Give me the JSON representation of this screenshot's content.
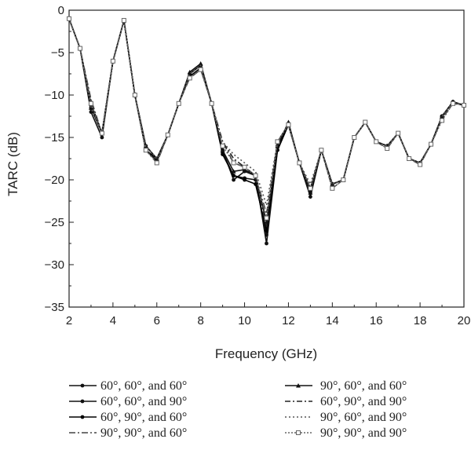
{
  "chart_data": {
    "type": "line",
    "xlabel": "Frequency (GHz)",
    "ylabel": "TARC (dB)",
    "xlim": [
      2,
      20
    ],
    "ylim": [
      -35,
      0
    ],
    "xticks": [
      2,
      4,
      6,
      8,
      10,
      12,
      14,
      16,
      18,
      20
    ],
    "yticks": [
      0,
      -5,
      -10,
      -15,
      -20,
      -25,
      -30,
      -35
    ],
    "grid": false,
    "legend_position": "bottom",
    "x": [
      2,
      2.5,
      3,
      3.5,
      4,
      4.5,
      5,
      5.5,
      6,
      6.5,
      7,
      7.5,
      8,
      8.5,
      9,
      9.5,
      10,
      10.5,
      11,
      11.5,
      12,
      12.5,
      13,
      13.5,
      14,
      14.5,
      15,
      15.5,
      16,
      16.5,
      17,
      17.5,
      18,
      18.5,
      19,
      19.5,
      20
    ],
    "series": [
      {
        "name": "60°, 60°, and 60°",
        "values": [
          -1,
          -4.5,
          -12,
          -15,
          -6,
          -1.2,
          -10,
          -16,
          -17.5,
          -14.7,
          -11,
          -7.5,
          -6.5,
          -11,
          -16.5,
          -20,
          -19,
          -19.5,
          -27.5,
          -16.5,
          -13.5,
          -18,
          -22,
          -16.5,
          -20.5,
          -20,
          -15,
          -13.2,
          -15.5,
          -16,
          -14.5,
          -17.5,
          -18,
          -15.8,
          -12.5,
          -10.8,
          -11.2
        ]
      },
      {
        "name": "60°, 60°, and 90°",
        "values": [
          -1,
          -4.5,
          -11.5,
          -14.5,
          -6,
          -1.2,
          -10,
          -16.5,
          -17.8,
          -14.7,
          -11,
          -7.5,
          -6.5,
          -11,
          -16.8,
          -19.5,
          -19.8,
          -20,
          -26.5,
          -16,
          -13.5,
          -18,
          -21.5,
          -16.5,
          -20.5,
          -20,
          -15,
          -13.2,
          -15.5,
          -16,
          -14.5,
          -17.5,
          -18,
          -15.8,
          -12.5,
          -10.8,
          -11.2
        ]
      },
      {
        "name": "60°, 90°, and 60°",
        "values": [
          -1,
          -4.5,
          -11,
          -14.5,
          -6,
          -1.2,
          -10,
          -16.5,
          -17.5,
          -14.7,
          -11,
          -7.8,
          -6.8,
          -11,
          -17,
          -19.5,
          -20,
          -20.5,
          -26,
          -16.5,
          -13.5,
          -18,
          -21,
          -16.5,
          -20.5,
          -20,
          -15,
          -13.2,
          -15.5,
          -16,
          -14.5,
          -17.5,
          -18,
          -15.8,
          -12.5,
          -10.8,
          -11.2
        ]
      },
      {
        "name": "90°, 90°, and 60°",
        "values": [
          -1,
          -4.5,
          -10.5,
          -14.5,
          -6,
          -1.2,
          -10,
          -16.5,
          -18,
          -14.7,
          -11,
          -8,
          -7,
          -11,
          -15.5,
          -18,
          -18.5,
          -19.5,
          -24,
          -15.5,
          -13.5,
          -18,
          -21,
          -16.5,
          -21,
          -20,
          -15,
          -13.2,
          -15.5,
          -16.3,
          -14.5,
          -17.5,
          -18.2,
          -15.8,
          -12.8,
          -11,
          -11.2
        ]
      },
      {
        "name": "90°, 60°, and 60°",
        "values": [
          -1,
          -4.5,
          -11.5,
          -14.5,
          -6,
          -1.2,
          -10,
          -16,
          -17.5,
          -14.7,
          -11,
          -7.3,
          -6.3,
          -11,
          -16.5,
          -19,
          -18.8,
          -19.5,
          -25,
          -16,
          -13.2,
          -18,
          -21.5,
          -16.5,
          -20.5,
          -20,
          -15,
          -13.2,
          -15.5,
          -16,
          -14.5,
          -17.5,
          -18,
          -15.8,
          -12.5,
          -10.8,
          -11.2
        ]
      },
      {
        "name": "60°, 90°, and 90°",
        "values": [
          -1,
          -4.5,
          -11,
          -14.5,
          -6,
          -1.2,
          -10,
          -16,
          -17.5,
          -14.7,
          -11,
          -7.5,
          -6.5,
          -11,
          -15.5,
          -17.5,
          -18.5,
          -19.5,
          -25.5,
          -15.5,
          -13.5,
          -18,
          -21,
          -16.5,
          -20.5,
          -20,
          -15,
          -13.2,
          -15.5,
          -16,
          -14.5,
          -17.5,
          -18,
          -15.8,
          -12.5,
          -10.8,
          -11.2
        ]
      },
      {
        "name": "90°, 60°, and 90°",
        "values": [
          -1,
          -4.5,
          -11.5,
          -14.5,
          -6,
          -1.2,
          -10,
          -16,
          -17.5,
          -14.7,
          -11,
          -7.5,
          -6.5,
          -11,
          -15.5,
          -17,
          -18,
          -19,
          -23,
          -15.5,
          -13.5,
          -18,
          -20.5,
          -16.5,
          -20.5,
          -20,
          -15,
          -13.2,
          -15.5,
          -16,
          -14.5,
          -17.5,
          -18,
          -15.8,
          -12.5,
          -10.8,
          -11.2
        ]
      },
      {
        "name": "90°, 90°, and 90°",
        "values": [
          -1,
          -4.5,
          -11,
          -14.5,
          -6,
          -1.2,
          -10,
          -16.5,
          -18,
          -14.7,
          -11,
          -8,
          -7,
          -11,
          -16,
          -18,
          -18.5,
          -19.5,
          -24.5,
          -15.5,
          -13.5,
          -18,
          -21,
          -16.5,
          -21,
          -20,
          -15,
          -13.2,
          -15.5,
          -16.3,
          -14.5,
          -17.5,
          -18.2,
          -15.8,
          -13,
          -11,
          -11.2
        ]
      }
    ]
  },
  "styles": {
    "axis_color": "#222222",
    "series": [
      {
        "color": "#111111",
        "dash": "",
        "marker": "dot-filled"
      },
      {
        "color": "#111111",
        "dash": "",
        "marker": "dot-filled"
      },
      {
        "color": "#000000",
        "dash": "",
        "marker": "dot-filled"
      },
      {
        "color": "#444444",
        "dash": "8 3 2 3",
        "marker": "none"
      },
      {
        "color": "#111111",
        "dash": "",
        "marker": "triangle"
      },
      {
        "color": "#222222",
        "dash": "7 3 2 3",
        "marker": "none"
      },
      {
        "color": "#555555",
        "dash": "2 3",
        "marker": "none"
      },
      {
        "color": "#666666",
        "dash": "2 2",
        "marker": "square-open"
      }
    ]
  }
}
